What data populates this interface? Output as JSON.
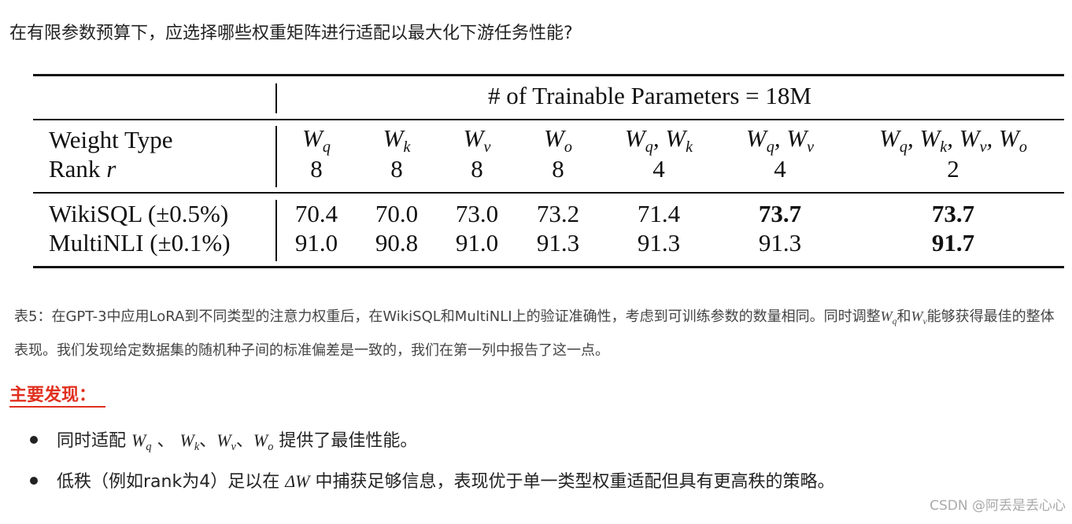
{
  "question": "在有限参数预算下，应选择哪些权重矩阵进行适配以最大化下游任务性能?",
  "table": {
    "group_header": "# of Trainable Parameters = 18M",
    "weight_label": "Weight Type",
    "rank_label": {
      "text": "Rank",
      "var": "r"
    },
    "columns": [
      {
        "weights": [
          {
            "base": "W",
            "sub": "q"
          }
        ],
        "rank": "8"
      },
      {
        "weights": [
          {
            "base": "W",
            "sub": "k"
          }
        ],
        "rank": "8"
      },
      {
        "weights": [
          {
            "base": "W",
            "sub": "v"
          }
        ],
        "rank": "8"
      },
      {
        "weights": [
          {
            "base": "W",
            "sub": "o"
          }
        ],
        "rank": "8"
      },
      {
        "weights": [
          {
            "base": "W",
            "sub": "q"
          },
          {
            "base": "W",
            "sub": "k"
          }
        ],
        "rank": "4"
      },
      {
        "weights": [
          {
            "base": "W",
            "sub": "q"
          },
          {
            "base": "W",
            "sub": "v"
          }
        ],
        "rank": "4"
      },
      {
        "weights": [
          {
            "base": "W",
            "sub": "q"
          },
          {
            "base": "W",
            "sub": "k"
          },
          {
            "base": "W",
            "sub": "v"
          },
          {
            "base": "W",
            "sub": "o"
          }
        ],
        "rank": "2"
      }
    ],
    "rows": [
      {
        "label": "WikiSQL (±0.5%)",
        "values": [
          "70.4",
          "70.0",
          "73.0",
          "73.2",
          "71.4",
          "73.7",
          "73.7"
        ],
        "bold": [
          5,
          6
        ]
      },
      {
        "label": "MultiNLI (±0.1%)",
        "values": [
          "91.0",
          "90.8",
          "91.0",
          "91.3",
          "91.3",
          "91.3",
          "91.7"
        ],
        "bold": [
          6
        ]
      }
    ]
  },
  "caption": [
    "表5：在GPT-3中应用LoRA到不同类型的注意力权重后，在WikiSQL和MultiNLI上的验证准确性，考虑到可训练参数的数量相同。同时调整",
    {
      "base": "W",
      "sub": "q"
    },
    "和",
    {
      "base": "W",
      "sub": "v"
    },
    "能够获得最佳的整体表现。我们发现给定数据集的随机种子间的标准偏差是一致的，我们在第一列中报告了这一点。"
  ],
  "findings_title": "主要发现：",
  "bullets": [
    [
      "同时适配 ",
      {
        "base": "W",
        "sub": "q"
      },
      " 、 ",
      {
        "base": "W",
        "sub": "k"
      },
      "、",
      {
        "base": "W",
        "sub": "v"
      },
      "、",
      {
        "base": "W",
        "sub": "o"
      },
      " 提供了最佳性能。"
    ],
    [
      "低秩（例如rank为4）足以在 ",
      {
        "base": "ΔW"
      },
      " 中捕获足够信息，表现优于单一类型权重适配但具有更高秩的策略。"
    ]
  ],
  "watermark": "CSDN @阿丢是丢心心"
}
